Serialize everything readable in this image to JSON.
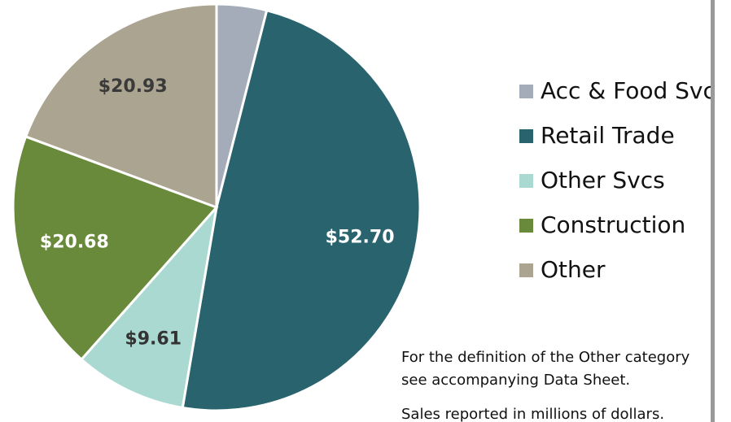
{
  "chart_data": {
    "type": "pie",
    "categories": [
      "Acc & Food Svcs",
      "Retail Trade",
      "Other Svcs",
      "Construction",
      "Other"
    ],
    "values": [
      4.3,
      52.7,
      9.61,
      20.68,
      20.93
    ],
    "value_labels": [
      null,
      "$52.70",
      "$9.61",
      "$20.68",
      "$20.93"
    ],
    "colors": [
      "#a4acb9",
      "#29646e",
      "#a9d9d0",
      "#6a8a3b",
      "#aba491"
    ],
    "label_colors": [
      "#ffffff",
      "#ffffff",
      "#333333",
      "#ffffff",
      "#3a3a3a"
    ],
    "notes": [
      "For the definition of the Other category",
      "see accompanying Data Sheet.",
      "Sales reported in millions of dollars."
    ]
  }
}
